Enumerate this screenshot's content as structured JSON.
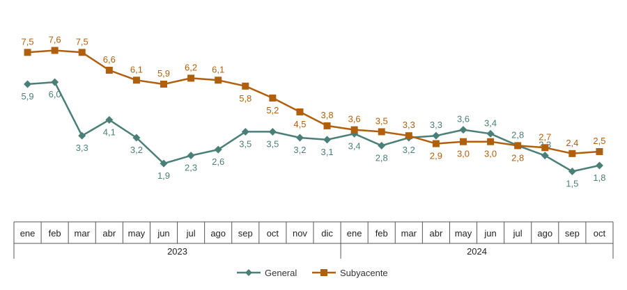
{
  "chart_data": {
    "type": "line",
    "categories": [
      "ene",
      "feb",
      "mar",
      "abr",
      "may",
      "jun",
      "jul",
      "ago",
      "sep",
      "oct",
      "nov",
      "dic",
      "ene",
      "feb",
      "mar",
      "abr",
      "may",
      "jun",
      "jul",
      "ago",
      "sep",
      "oct"
    ],
    "category_labels": [
      "ene",
      "feb",
      "mar",
      "abr",
      "may",
      "jun",
      "jul",
      "ago",
      "sep",
      "oct",
      "nov",
      "dic",
      "ene",
      "feb",
      "mar",
      "abr",
      "may",
      "jun",
      "jul",
      "ago",
      "sep",
      "oct"
    ],
    "groups": [
      {
        "label": "2023",
        "count": 12
      },
      {
        "label": "2024",
        "count": 10
      }
    ],
    "series": [
      {
        "name": "General",
        "color": "#4a7f78",
        "marker": "diamond",
        "values": [
          5.9,
          6.0,
          3.3,
          4.1,
          3.2,
          1.9,
          2.3,
          2.6,
          3.5,
          3.5,
          3.2,
          3.1,
          3.4,
          2.8,
          3.2,
          3.3,
          3.6,
          3.4,
          2.8,
          2.3,
          1.5,
          1.8
        ],
        "labels": [
          "5,9",
          "6,0",
          "3,3",
          "4,1",
          "3,2",
          "1,9",
          "2,3",
          "2,6",
          "3,5",
          "3,5",
          "3,2",
          "3,1",
          "3,4",
          "2,8",
          "3,2",
          "3,3",
          "3,6",
          "3,4",
          "2,8",
          "2,3",
          "1,5",
          "1,8"
        ]
      },
      {
        "name": "Subyacente",
        "color": "#b05f0c",
        "marker": "square",
        "values": [
          7.5,
          7.6,
          7.5,
          6.6,
          6.1,
          5.9,
          6.2,
          6.1,
          5.8,
          5.2,
          4.5,
          3.8,
          3.6,
          3.5,
          3.3,
          2.9,
          3.0,
          3.0,
          2.8,
          2.7,
          2.4,
          2.5
        ],
        "labels": [
          "7,5",
          "7,6",
          "7,5",
          "6,6",
          "6,1",
          "5,9",
          "6,2",
          "6,1",
          "5,8",
          "5,2",
          "4,5",
          "3,8",
          "3,6",
          "3,5",
          "3,3",
          "2,9",
          "3,0",
          "3,0",
          "2,8",
          "2,7",
          "2,4",
          "2,5"
        ]
      }
    ],
    "legend": {
      "position": "bottom",
      "entries": [
        "General",
        "Subyacente"
      ]
    },
    "grid": false
  }
}
